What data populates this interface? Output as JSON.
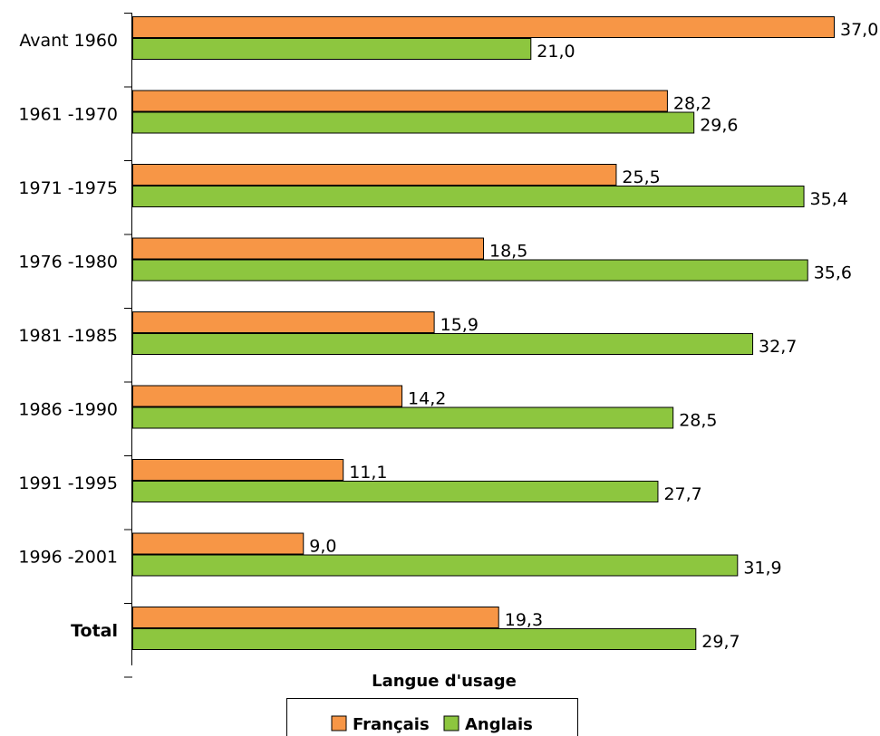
{
  "chart_data": {
    "type": "bar",
    "orientation": "horizontal",
    "categories": [
      "Avant 1960",
      "1961 -1970",
      "1971 -1975",
      "1976 -1980",
      "1981 -1985",
      "1986 -1990",
      "1991 -1995",
      "1996 -2001",
      "Total"
    ],
    "bold_categories": [
      "Total"
    ],
    "series": [
      {
        "name": "Français",
        "color": "#f79646",
        "values": [
          37.0,
          28.2,
          25.5,
          18.5,
          15.9,
          14.2,
          11.1,
          9.0,
          19.3
        ],
        "labels": [
          "37,0",
          "28,2",
          "25,5",
          "18,5",
          "15,9",
          "14,2",
          "11,1",
          "9,0",
          "19,3"
        ]
      },
      {
        "name": "Anglais",
        "color": "#8dc63f",
        "values": [
          21.0,
          29.6,
          35.4,
          35.6,
          32.7,
          28.5,
          27.7,
          31.9,
          29.7
        ],
        "labels": [
          "21,0",
          "29,6",
          "35,4",
          "35,6",
          "32,7",
          "28,5",
          "27,7",
          "31,9",
          "29,7"
        ]
      }
    ],
    "xlabel": "Langue d'usage",
    "xlim": [
      0,
      37.0
    ],
    "grid": false,
    "legend_position": "bottom"
  }
}
